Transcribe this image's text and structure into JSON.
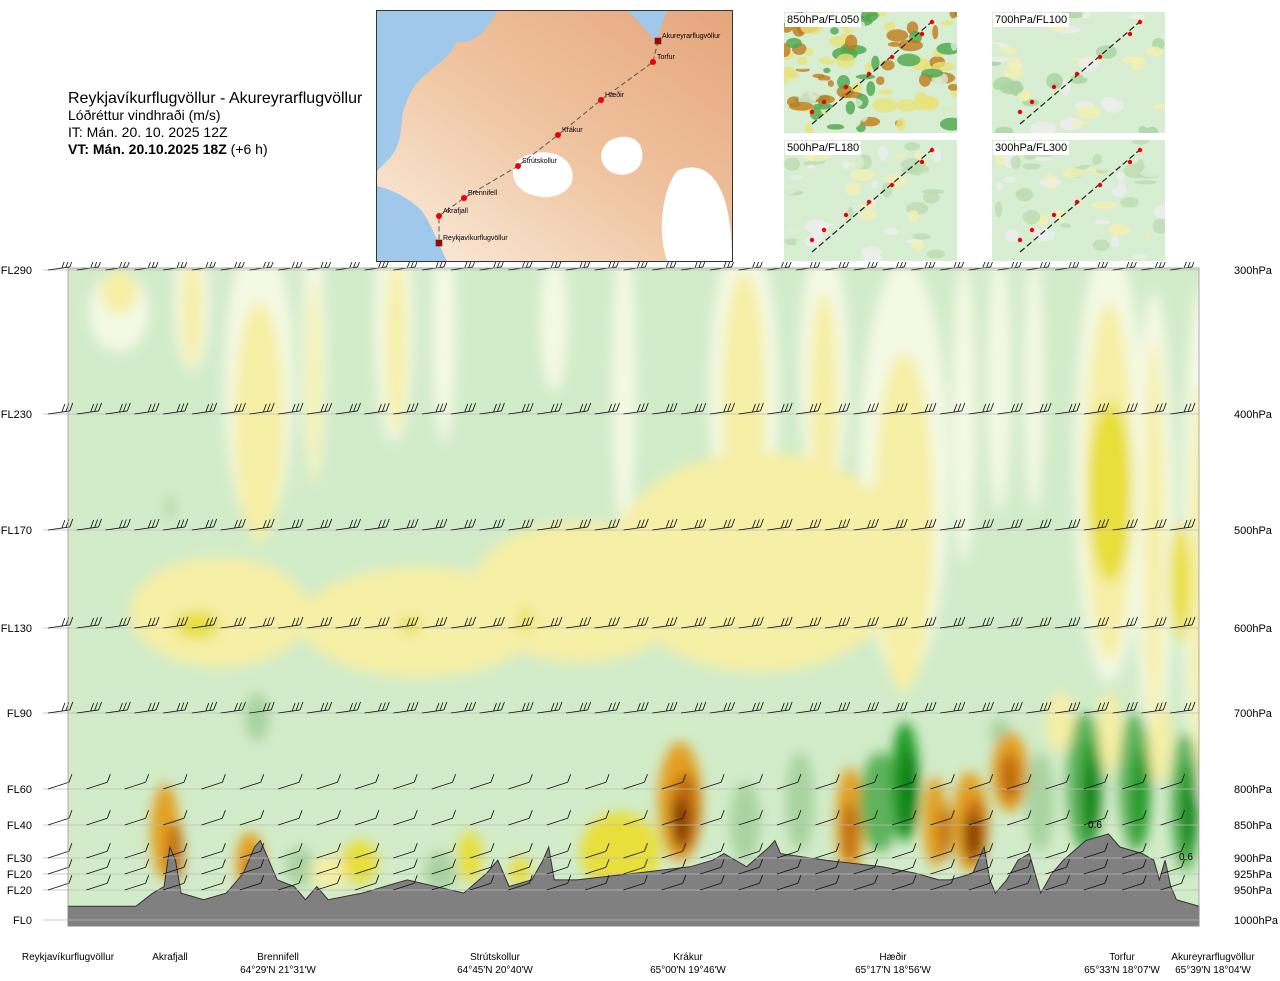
{
  "header": {
    "route_title": "Reykjavíkurflugvöllur - Akureyrarflugvöllur",
    "variable": "Lóðréttur vindhraði (m/s)",
    "issue_time": "IT: Mán. 20. 10. 2025 12Z",
    "valid_prefix": "VT: Mán. 20.10.2025 18Z",
    "valid_suffix": " (+6 h)"
  },
  "route_map": {
    "points": [
      {
        "label": "Akureyrarflugvöllur",
        "type": "airport"
      },
      {
        "label": "Torfur",
        "type": "waypoint"
      },
      {
        "label": "Hæðir",
        "type": "waypoint"
      },
      {
        "label": "Krákur",
        "type": "waypoint"
      },
      {
        "label": "Strútskollur",
        "type": "waypoint"
      },
      {
        "label": "Brennifell",
        "type": "waypoint"
      },
      {
        "label": "Akrafjall",
        "type": "waypoint"
      },
      {
        "label": "Reykjavíkurflugvöllur",
        "type": "airport"
      }
    ]
  },
  "level_panels": [
    {
      "label": "850hPa/FL050"
    },
    {
      "label": "700hPa/FL100"
    },
    {
      "label": "500hPa/FL180"
    },
    {
      "label": "300hPa/FL300"
    }
  ],
  "chart_data": {
    "type": "heatmap",
    "title": "Lóðréttur vindhraði (m/s)",
    "y_left_ticks": [
      "FL290",
      "FL230",
      "FL170",
      "FL130",
      "FL90",
      "FL60",
      "FL40",
      "FL30",
      "FL20",
      "FL20",
      "FL0"
    ],
    "y_right_ticks": [
      "300hPa",
      "400hPa",
      "500hPa",
      "600hPa",
      "700hPa",
      "800hPa",
      "850hPa",
      "900hPa",
      "925hPa",
      "950hPa",
      "1000hPa"
    ],
    "pressure_levels_hPa": [
      300,
      400,
      500,
      600,
      700,
      800,
      850,
      900,
      925,
      950,
      1000
    ],
    "x_waypoints": [
      {
        "name": "Reykjavíkurflugvöllur",
        "coord": "",
        "dist": 0
      },
      {
        "name": "Akrafjall",
        "coord": "",
        "dist": 0.09
      },
      {
        "name": "Brennifell",
        "coord": "64°29'N 21°31'W",
        "dist": 0.17
      },
      {
        "name": "Strútskollur",
        "coord": "64°45'N 20°40'W",
        "dist": 0.38
      },
      {
        "name": "Krákur",
        "coord": "65°00'N 19°46'W",
        "dist": 0.55
      },
      {
        "name": "Hæðir",
        "coord": "65°17'N 18°56'W",
        "dist": 0.74
      },
      {
        "name": "Torfur",
        "coord": "65°33'N 18°07'W",
        "dist": 0.94
      },
      {
        "name": "Akureyrarflugvöllur",
        "coord": "65°39'N 18°04'W",
        "dist": 1.0
      }
    ],
    "contour_labels": [
      "0.6",
      "0.6"
    ],
    "colors": {
      "strong_up": "#7a3500",
      "up3": "#c06a10",
      "up2": "#e3a020",
      "up1": "#e8df3a",
      "weak_up": "#f6efa6",
      "neutral": "#f4f9e4",
      "weak_down": "#d2ecc9",
      "down1": "#a8d3a0",
      "down2": "#5fb35b",
      "down3": "#1e9a24",
      "strong_down": "#0a7d12",
      "terrain": "#808080"
    }
  }
}
